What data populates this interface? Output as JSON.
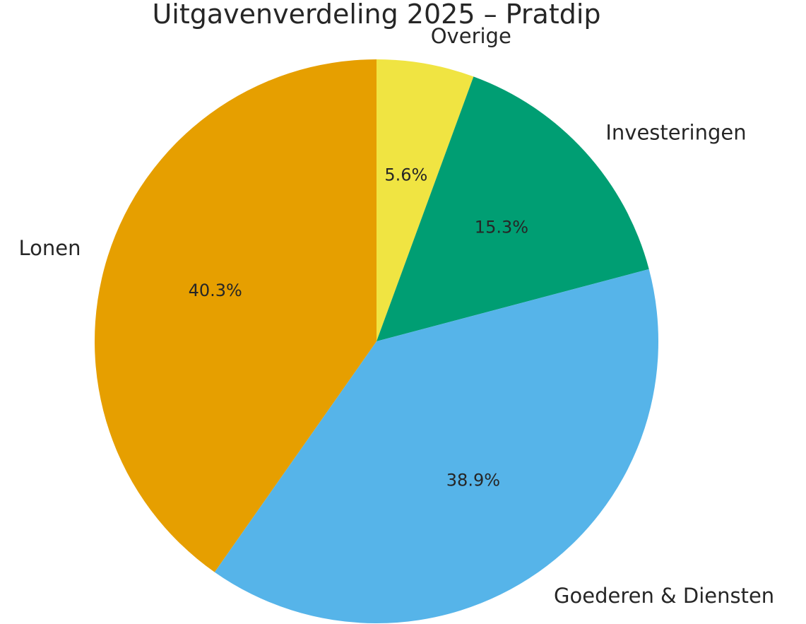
{
  "chart_data": {
    "type": "pie",
    "title": "Uitgavenverdeling 2025 – Pratdip",
    "start": "top",
    "direction": "clockwise",
    "slices": [
      {
        "label": "Overige",
        "value": 5.6,
        "pct_label": "5.6%",
        "color": "#F0E442"
      },
      {
        "label": "Investeringen",
        "value": 15.3,
        "pct_label": "15.3%",
        "color": "#009E73"
      },
      {
        "label": "Goederen & Diensten",
        "value": 38.9,
        "pct_label": "38.9%",
        "color": "#56B4E9"
      },
      {
        "label": "Lonen",
        "value": 40.3,
        "pct_label": "40.3%",
        "color": "#E69F00"
      }
    ]
  }
}
